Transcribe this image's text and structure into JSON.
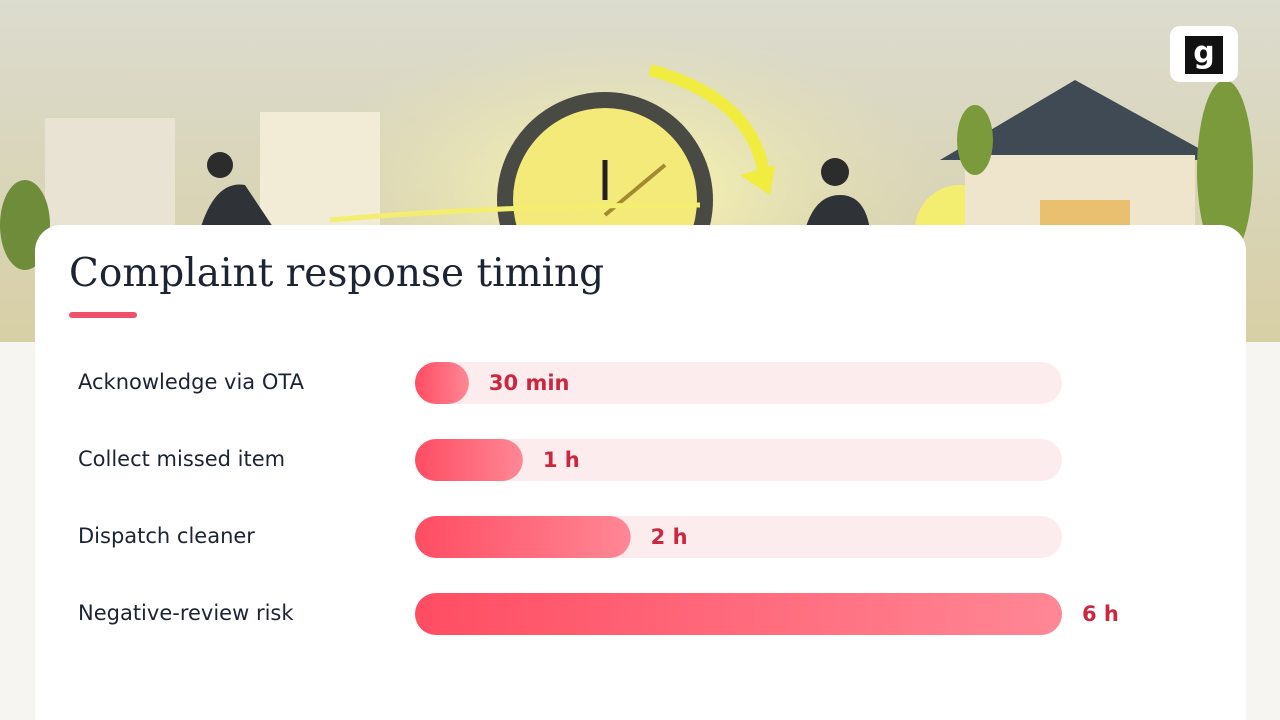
{
  "logo": "g",
  "chart_data": {
    "type": "bar",
    "orientation": "horizontal",
    "title": "Complaint response timing",
    "categories": [
      "Acknowledge via OTA",
      "Collect missed item",
      "Dispatch cleaner",
      "Negative-review risk"
    ],
    "values": [
      0.5,
      1,
      2,
      6
    ],
    "value_labels": [
      "30 min",
      "1 h",
      "2 h",
      "6 h"
    ],
    "color": "#ff4d63",
    "track_color": "#fdeced",
    "label_color": "#c9283f"
  }
}
